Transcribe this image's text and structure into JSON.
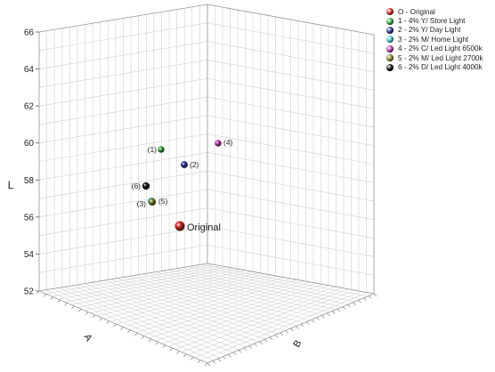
{
  "chart_data": {
    "type": "scatter3d",
    "axes": {
      "x": {
        "label": "A",
        "range": [
          -3.5,
          2.6
        ]
      },
      "y": {
        "label": "B",
        "range": [
          -2,
          6
        ]
      },
      "z": {
        "label": "L",
        "range": [
          52,
          66
        ],
        "ticks": [
          "52",
          "54",
          "56",
          "58",
          "60",
          "62",
          "64",
          "66"
        ]
      }
    },
    "grid": true,
    "legend_position": "top-right",
    "series": [
      {
        "name": "O - Original",
        "color": "#e0302a",
        "point_label": "Original"
      },
      {
        "name": "1 - 4% Y/ Store Light",
        "color": "#3cb44a",
        "point_label": "(1)"
      },
      {
        "name": "2 - 2% Y/ Day Light",
        "color": "#2b3d9a",
        "point_label": "(2)"
      },
      {
        "name": "3 - 2% M/ Home Light",
        "color": "#4fc8d8",
        "point_label": "(3)"
      },
      {
        "name": "4 - 2% C/ Led Light 6500k",
        "color": "#c040b0",
        "point_label": "(4)"
      },
      {
        "name": "5 - 2% M/ Led Light 2700k",
        "color": "#8a8a28",
        "point_label": "(5)"
      },
      {
        "name": "6 - 2% D/ Led Light 4000k",
        "color": "#111111",
        "point_label": "(6)"
      }
    ],
    "points": [
      {
        "series": 0,
        "L": 55.6
      },
      {
        "series": 1,
        "L": 60.3
      },
      {
        "series": 2,
        "L": 59.6
      },
      {
        "series": 3,
        "L": 58.0
      },
      {
        "series": 4,
        "L": 60.9
      },
      {
        "series": 5,
        "L": 58.0
      },
      {
        "series": 6,
        "L": 58.8
      }
    ]
  }
}
